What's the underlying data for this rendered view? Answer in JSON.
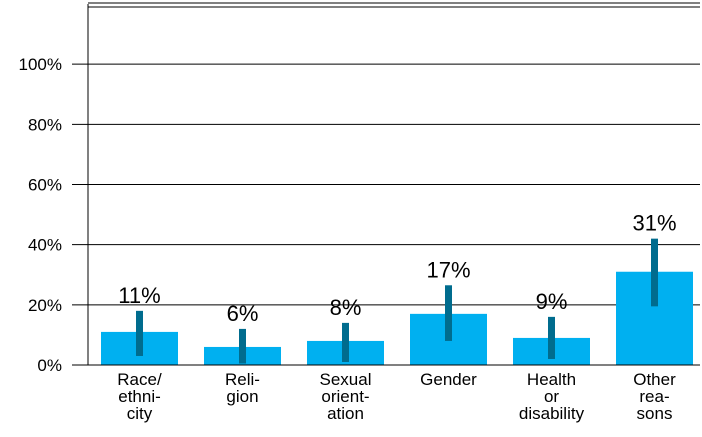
{
  "chart_data": {
    "type": "bar",
    "categories": [
      [
        "Race/",
        "ethni-",
        "city"
      ],
      [
        "Reli-",
        "gion"
      ],
      [
        "Sexual",
        "orient-",
        "ation"
      ],
      [
        "Gender"
      ],
      [
        "Health",
        "or",
        "disability"
      ],
      [
        "Other",
        "rea-",
        "sons"
      ]
    ],
    "values": [
      11,
      6,
      8,
      17,
      9,
      31
    ],
    "value_labels": [
      "11%",
      "6%",
      "8%",
      "17%",
      "9%",
      "31%"
    ],
    "error_low": [
      3,
      0.5,
      1,
      8,
      2,
      19.5
    ],
    "error_high": [
      18,
      12,
      14,
      26.5,
      16,
      42
    ],
    "ylim": [
      0,
      120
    ],
    "y_ticks": [
      0,
      20,
      40,
      60,
      80,
      100
    ],
    "y_tick_labels": [
      "0%",
      "20%",
      "40%",
      "60%",
      "80%",
      "100%"
    ],
    "grid": true,
    "legend": "none",
    "colors": {
      "bar": "#00b0f0",
      "error_bar": "#006c8e",
      "grid": "#000000",
      "text": "#000000"
    }
  }
}
